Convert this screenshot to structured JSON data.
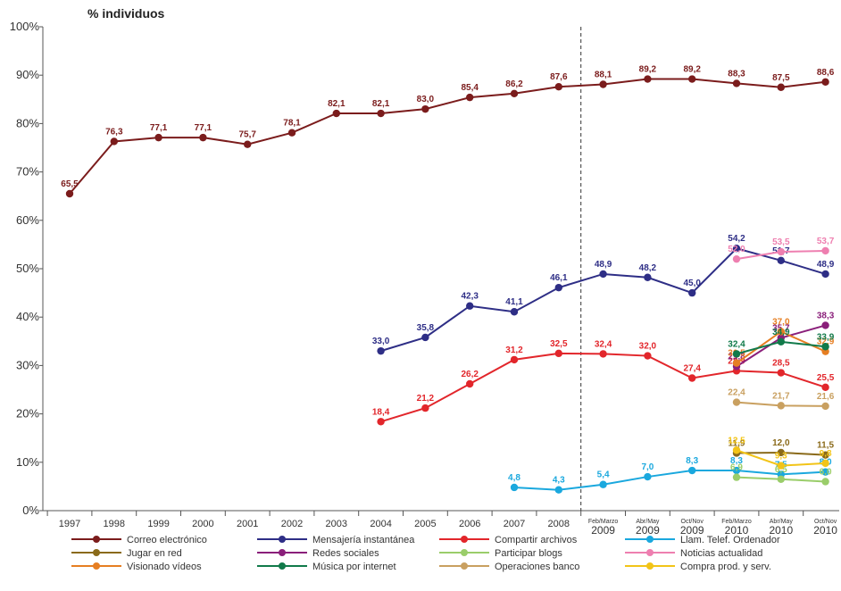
{
  "chart_data": {
    "type": "line",
    "title": "% individuos",
    "y_ticks": [
      "0%",
      "10%",
      "20%",
      "30%",
      "40%",
      "50%",
      "60%",
      "70%",
      "80%",
      "90%",
      "100%"
    ],
    "ylim": [
      0,
      100
    ],
    "x_labels": [
      {
        "main": "1997",
        "sub": ""
      },
      {
        "main": "1998",
        "sub": ""
      },
      {
        "main": "1999",
        "sub": ""
      },
      {
        "main": "2000",
        "sub": ""
      },
      {
        "main": "2001",
        "sub": ""
      },
      {
        "main": "2002",
        "sub": ""
      },
      {
        "main": "2003",
        "sub": ""
      },
      {
        "main": "2004",
        "sub": ""
      },
      {
        "main": "2005",
        "sub": ""
      },
      {
        "main": "2006",
        "sub": ""
      },
      {
        "main": "2007",
        "sub": ""
      },
      {
        "main": "2008",
        "sub": ""
      },
      {
        "main": "2009",
        "sub": "Feb/Marzo"
      },
      {
        "main": "2009",
        "sub": "Abr/May"
      },
      {
        "main": "2009",
        "sub": "Oct/Nov"
      },
      {
        "main": "2010",
        "sub": "Feb/Marzo"
      },
      {
        "main": "2010",
        "sub": "Abr/May"
      },
      {
        "main": "2010",
        "sub": "Oct/Nov"
      }
    ],
    "divider_after_index": 11,
    "series": [
      {
        "name": "Correo electrónico",
        "color": "#7b1c1c",
        "start": 0,
        "values": [
          65.5,
          76.3,
          77.1,
          77.1,
          75.7,
          78.1,
          82.1,
          82.1,
          83.0,
          85.4,
          86.2,
          87.6,
          88.1,
          89.2,
          89.2,
          88.3,
          87.5,
          88.6
        ],
        "labels": [
          "65,5",
          "76,3",
          "77,1",
          "77,1",
          "75,7",
          "78,1",
          "82,1",
          "82,1",
          "83,0",
          "85,4",
          "86,2",
          "87,6",
          "88,1",
          "89,2",
          "89,2",
          "88,3",
          "87,5",
          "88,6"
        ]
      },
      {
        "name": "Mensajería instantánea",
        "color": "#2e2e86",
        "start": 7,
        "values": [
          33.0,
          35.8,
          42.3,
          41.1,
          46.1,
          48.9,
          48.2,
          45.0,
          54.2,
          51.7,
          48.9
        ],
        "labels": [
          "33,0",
          "35,8",
          "42,3",
          "41,1",
          "46,1",
          "48,9",
          "48,2",
          "45,0",
          "54,2",
          "51,7",
          "48,9"
        ]
      },
      {
        "name": "Compartir archivos",
        "color": "#e2262b",
        "start": 7,
        "values": [
          18.4,
          21.2,
          26.2,
          31.2,
          32.5,
          32.4,
          32.0,
          27.4,
          28.9,
          28.5,
          25.5
        ],
        "labels": [
          "18,4",
          "21,2",
          "26,2",
          "31,2",
          "32,5",
          "32,4",
          "32,0",
          "27,4",
          "28,9",
          "28,5",
          "25,5"
        ]
      },
      {
        "name": "Llam. Telef. Ordenador",
        "color": "#1aa8de",
        "start": 10,
        "values": [
          4.8,
          4.3,
          5.4,
          7.0,
          8.3,
          8.3,
          7.5,
          8.0
        ],
        "labels": [
          "4,8",
          "4,3",
          "5,4",
          "7,0",
          "8,3",
          "8,3",
          "7,5",
          "8,0"
        ]
      },
      {
        "name": "Jugar en red",
        "color": "#8a6a1a",
        "start": 15,
        "values": [
          11.9,
          12.0,
          11.5
        ],
        "labels": [
          "11,9",
          "12,0",
          "11,5"
        ]
      },
      {
        "name": "Redes sociales",
        "color": "#8a1f7a",
        "start": 15,
        "values": [
          29.8,
          35.7,
          38.3
        ],
        "labels": [
          "29,8",
          "35,7",
          "38,3"
        ]
      },
      {
        "name": "Participar blogs",
        "color": "#9acd6a",
        "start": 15,
        "values": [
          6.9,
          6.5,
          6.0
        ],
        "labels": [
          "6,9",
          "6,5",
          "6,0"
        ]
      },
      {
        "name": "Noticias actualidad",
        "color": "#ee7fb0",
        "start": 15,
        "values": [
          52.0,
          53.5,
          53.7
        ],
        "labels": [
          "52,0",
          "53,5",
          "53,7"
        ]
      },
      {
        "name": "Visionado vídeos",
        "color": "#e67e22",
        "start": 15,
        "values": [
          30.5,
          37.0,
          32.9
        ],
        "labels": [
          "30,5",
          "37,0",
          "32,9"
        ]
      },
      {
        "name": "Música por internet",
        "color": "#117a4a",
        "start": 15,
        "values": [
          32.4,
          34.9,
          33.9
        ],
        "labels": [
          "32,4",
          "34,9",
          "33,9"
        ]
      },
      {
        "name": "Operaciones banco",
        "color": "#c9a060",
        "start": 15,
        "values": [
          22.4,
          21.7,
          21.6
        ],
        "labels": [
          "22,4",
          "21,7",
          "21,6"
        ]
      },
      {
        "name": "Compra prod. y serv.",
        "color": "#f2c418",
        "start": 15,
        "values": [
          12.5,
          9.3,
          9.8
        ],
        "labels": [
          "12,5",
          "9,3",
          "9,8"
        ]
      }
    ]
  }
}
